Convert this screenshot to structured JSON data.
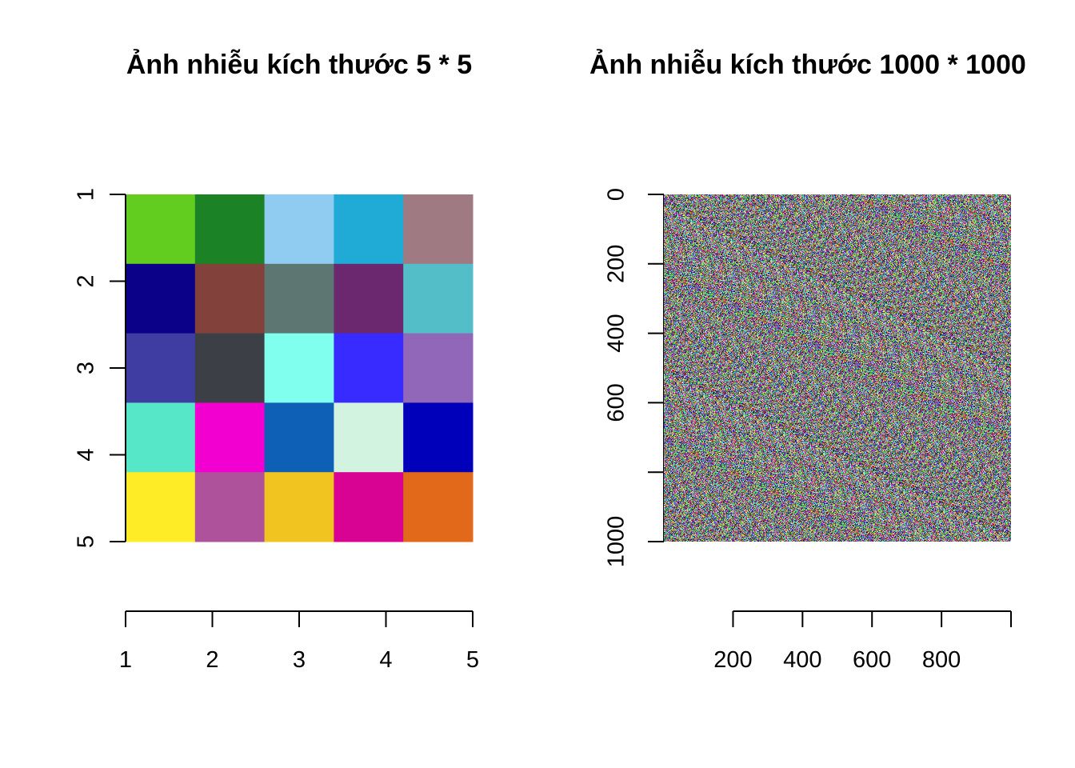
{
  "chart_data": [
    {
      "type": "heatmap",
      "title": "Ảnh nhiễu kích thước 5 * 5",
      "xlabel": "",
      "ylabel": "",
      "x_ticks": [
        "1",
        "2",
        "3",
        "4",
        "5"
      ],
      "y_ticks": [
        "1",
        "2",
        "3",
        "4",
        "5"
      ],
      "rows": 5,
      "cols": 5,
      "cells": [
        [
          "#62CC1F",
          "#1B8226",
          "#90CCF2",
          "#20AAD6",
          "#A07A82"
        ],
        [
          "#0B0088",
          "#82413A",
          "#5D7672",
          "#6B286F",
          "#53BEC8"
        ],
        [
          "#3F3CA2",
          "#3C3F46",
          "#80FFEE",
          "#382BFF",
          "#9168B9"
        ],
        [
          "#56E6C8",
          "#F200CF",
          "#0E60B6",
          "#D3F3E1",
          "#0000BA"
        ],
        [
          "#FDEC26",
          "#AE539B",
          "#F2C41F",
          "#D80293",
          "#E3691A"
        ]
      ]
    },
    {
      "type": "heatmap",
      "title": "Ảnh nhiễu kích thước 1000 * 1000",
      "xlabel": "",
      "ylabel": "",
      "x_ticks": [
        "200",
        "400",
        "600",
        "800"
      ],
      "y_ticks": [
        "0",
        "200",
        "400",
        "600",
        "1000"
      ],
      "xlim": [
        1,
        1000
      ],
      "ylim": [
        0,
        1000
      ],
      "rows": 1000,
      "cols": 1000,
      "content": "random RGB noise"
    }
  ]
}
